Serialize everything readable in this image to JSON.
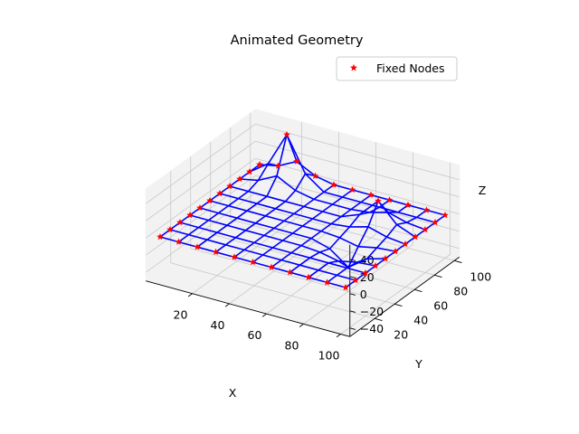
{
  "chart_data": {
    "type": "3d-wireframe",
    "title": "Animated Geometry",
    "xlabel": "X",
    "ylabel": "Y",
    "zlabel": "Z",
    "xlim": [
      0,
      100
    ],
    "ylim": [
      0,
      100
    ],
    "zlim": [
      -50,
      55
    ],
    "xticks": [
      "20",
      "40",
      "60",
      "80",
      "100"
    ],
    "yticks": [
      "20",
      "40",
      "60",
      "80",
      "100"
    ],
    "zticks": [
      "−40",
      "−20",
      "0",
      "20",
      "40"
    ],
    "grid": true,
    "legend_position": "upper right",
    "legend": [
      {
        "name": "Fixed Nodes",
        "marker": "star",
        "color": "#ff0000"
      }
    ],
    "wireframe": {
      "color": "#0000ff",
      "x": [
        0,
        10,
        20,
        30,
        40,
        50,
        60,
        70,
        80,
        90,
        100
      ],
      "y": [
        0,
        10,
        20,
        30,
        40,
        50,
        60,
        70,
        80,
        90,
        100
      ],
      "z_baseline": 0,
      "peaks": [
        {
          "x": 20,
          "y": 90,
          "z": 55,
          "radius": 10
        },
        {
          "x": 80,
          "y": 70,
          "z": 30,
          "radius": 10
        },
        {
          "x": 80,
          "y": 40,
          "z": -22,
          "radius": 10
        }
      ]
    },
    "fixed_nodes": {
      "name": "Fixed Nodes",
      "color": "#ff0000",
      "marker": "star",
      "z": 0,
      "placement": "all boundary grid nodes"
    }
  }
}
